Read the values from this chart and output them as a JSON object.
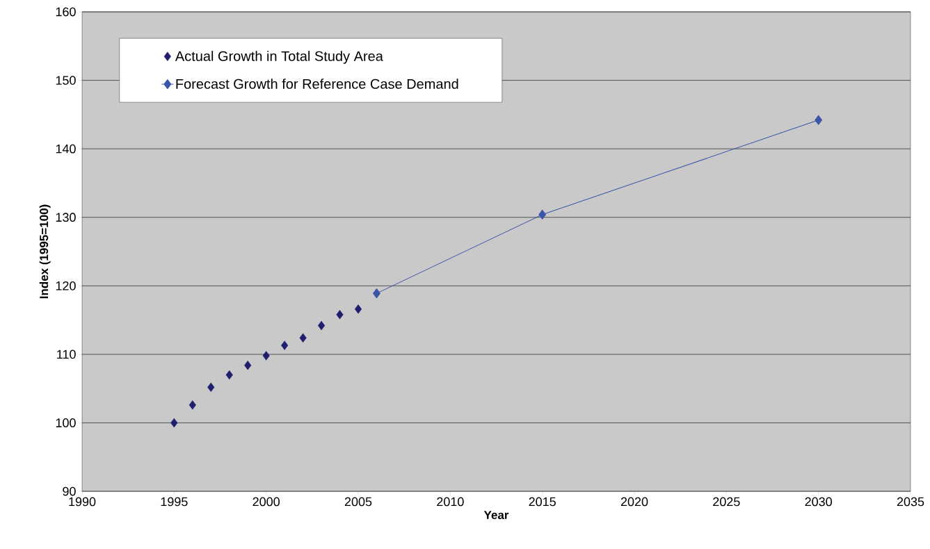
{
  "chart_data": {
    "type": "scatter",
    "xlabel": "Year",
    "ylabel": "Index (1995=100)",
    "xlim": [
      1990,
      2035
    ],
    "xticks": [
      1990,
      1995,
      2000,
      2005,
      2010,
      2015,
      2020,
      2025,
      2030,
      2035
    ],
    "ylim": [
      90,
      160
    ],
    "yticks": [
      90,
      100,
      110,
      120,
      130,
      140,
      150,
      160
    ],
    "grid": "y",
    "legend": "top left",
    "marker": "diamond",
    "series": [
      {
        "name": "Actual Growth in Total Study Area",
        "color": "#1f1f6e",
        "x": [
          1995,
          1996,
          1997,
          1998,
          1999,
          2000,
          2001,
          2002,
          2003,
          2004,
          2005
        ],
        "values": [
          100,
          102.6,
          105.2,
          107.0,
          108.4,
          109.8,
          111.3,
          112.4,
          114.2,
          115.8,
          116.6
        ]
      },
      {
        "name": "Forecast Growth for Reference Case Demand",
        "type": "line",
        "line_style": "solid",
        "color": "#3a55a8",
        "x": [
          2006,
          2015,
          2030
        ],
        "values": [
          118.9,
          130.4,
          144.2
        ]
      }
    ]
  }
}
